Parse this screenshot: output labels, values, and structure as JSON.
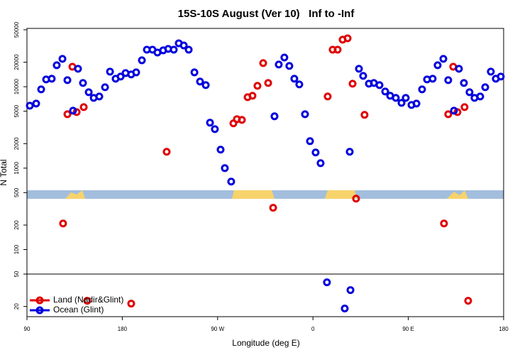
{
  "chart_data": {
    "type": "scatter",
    "title": "15S-10S August (Ver 10)   Inf to -Inf",
    "xlabel": "Longitude (deg E)",
    "ylabel": "N Total",
    "log_y": true,
    "legend": "lower left",
    "hline": 50,
    "xlim": [
      90,
      540
    ],
    "xticks": [
      90,
      {
        "value": 180,
        "label": "180"
      },
      {
        "value": 270,
        "label": "90 W"
      },
      {
        "value": 360,
        "label": "0"
      },
      {
        "value": 450,
        "label": "90 E"
      },
      {
        "value": 540,
        "label": "180"
      }
    ],
    "ylim": [
      15,
      52000
    ],
    "yticks": [
      20,
      50,
      100,
      200,
      500,
      1000,
      2000,
      5000,
      10000,
      20000,
      50000
    ],
    "series": [
      {
        "name": "Land (Nadir&Glint)",
        "color": "#e00000",
        "x": [
          124.1,
          128.2,
          132.9,
          136.9,
          143.6,
          146.9,
          188.4,
          221.9,
          284.9,
          288.2,
          292.9,
          298.3,
          302.9,
          307.6,
          313.0,
          317.7,
          322.4,
          373.9,
          378.6,
          383.3,
          388.0,
          392.7,
          397.4,
          400.7,
          408.7,
          483.7,
          487.7,
          492.4,
          496.4,
          503.1,
          506.5
        ],
        "values": [
          209,
          4595,
          17600,
          4880,
          5615,
          23.5,
          21.7,
          1589,
          3545,
          3995,
          3915,
          7440,
          7740,
          10250,
          19500,
          11120,
          326,
          7590,
          28500,
          28500,
          37800,
          39300,
          10900,
          422,
          4510,
          209,
          4595,
          17600,
          4880,
          5615,
          23.5
        ]
      },
      {
        "name": "Ocean (Glint)",
        "color": "#0000dd",
        "x": [
          92.7,
          98.7,
          103.4,
          108.1,
          113.4,
          118.1,
          123.5,
          128.2,
          133.5,
          138.2,
          142.9,
          148.3,
          153.0,
          158.3,
          163.7,
          168.4,
          173.7,
          178.4,
          183.1,
          188.4,
          193.1,
          198.5,
          203.2,
          208.5,
          213.2,
          218.6,
          223.3,
          228.6,
          233.3,
          238.0,
          242.7,
          248.1,
          253.4,
          258.8,
          262.8,
          267.4,
          272.8,
          276.8,
          282.8,
          323.7,
          327.7,
          333.0,
          337.7,
          342.4,
          347.1,
          352.5,
          357.2,
          362.5,
          367.2,
          373.2,
          390.0,
          394.7,
          395.4,
          403.4,
          407.4,
          412.8,
          417.5,
          422.8,
          428.2,
          432.9,
          438.2,
          443.6,
          447.6,
          453.0,
          457.7,
          463.0,
          467.7,
          473.0,
          477.7,
          483.1,
          487.7,
          493.1,
          497.8,
          502.5,
          507.8,
          512.5,
          517.9,
          522.6,
          527.9,
          532.6,
          537.3
        ],
        "values": [
          5850,
          6210,
          9270,
          12280,
          12530,
          18340,
          21980,
          12040,
          5080,
          16600,
          11120,
          8560,
          7290,
          7590,
          9850,
          15300,
          12530,
          13300,
          14700,
          14130,
          15000,
          21100,
          28500,
          28500,
          26300,
          27950,
          29100,
          28500,
          34150,
          32150,
          28500,
          15000,
          11560,
          10470,
          3615,
          3015,
          1687,
          1000,
          684,
          4330,
          18720,
          22850,
          17980,
          12530,
          10680,
          4595,
          2145,
          1556,
          1151,
          39.6,
          18.9,
          1589,
          31.8,
          16600,
          13580,
          10900,
          11120,
          10470,
          8740,
          7740,
          7290,
          6340,
          7290,
          5970,
          6210,
          9270,
          12280,
          12530,
          18340,
          21980,
          12040,
          5080,
          16600,
          11120,
          8560,
          7290,
          7590,
          9850,
          15300,
          12530,
          13300
        ]
      }
    ]
  }
}
